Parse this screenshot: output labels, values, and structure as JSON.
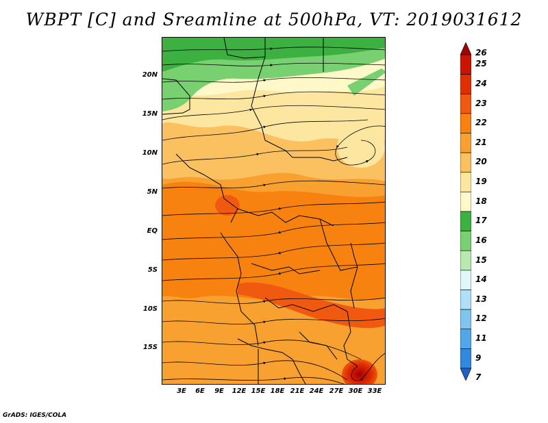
{
  "title": "WBPT [C] and Sreamline at 500hPa, VT: 2019031612",
  "credit": "GrADS: IGES/COLA",
  "lat_labels": [
    "20N",
    "15N",
    "10N",
    "5N",
    "EQ",
    "5S",
    "10S",
    "15S"
  ],
  "lat_values": [
    20,
    15,
    10,
    5,
    0,
    -5,
    -10,
    -15
  ],
  "lon_labels": [
    "3E",
    "6E",
    "9E",
    "12E",
    "15E",
    "18E",
    "21E",
    "24E",
    "27E",
    "30E",
    "33E"
  ],
  "lon_values": [
    3,
    6,
    9,
    12,
    15,
    18,
    21,
    24,
    27,
    30,
    33
  ],
  "map_extent": {
    "lon": [
      0.5,
      35
    ],
    "lat": [
      -20,
      24.5
    ]
  },
  "colorbar": {
    "levels": [
      "26",
      "25",
      "24",
      "23",
      "22",
      "21",
      "20",
      "19",
      "18",
      "17",
      "16",
      "15",
      "14",
      "13",
      "12",
      "11",
      "9",
      "7"
    ],
    "colors": [
      "#a00000",
      "#c81400",
      "#e03000",
      "#f05a10",
      "#f8820f",
      "#f8a030",
      "#fbc060",
      "#fde6a0",
      "#fff8c8",
      "#3cb040",
      "#78d070",
      "#b8eab0",
      "#e0f6f8",
      "#b0e0f8",
      "#80c4f0",
      "#50a8ea",
      "#3288dc",
      "#1e60c8"
    ]
  }
}
